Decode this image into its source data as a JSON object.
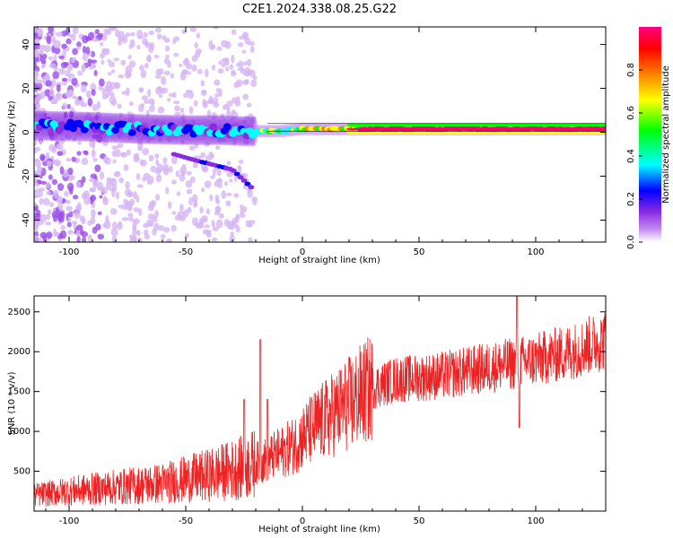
{
  "title": "C2E1.2024.338.08.25.G22",
  "chart_data": [
    {
      "type": "heatmap",
      "xlabel": "Height of straight line (km)",
      "ylabel": "Frequency (Hz)",
      "xlim": [
        -115,
        130
      ],
      "ylim": [
        -50,
        48
      ],
      "xticks": [
        "-100",
        "-50",
        "0",
        "50",
        "100"
      ],
      "xtick_values": [
        -100,
        -50,
        0,
        50,
        100
      ],
      "yticks": [
        "-40",
        "-20",
        "0",
        "20",
        "40"
      ],
      "ytick_values": [
        -40,
        -20,
        0,
        20,
        40
      ],
      "grid": false,
      "colorbar": {
        "label": "Normalized spectral amplitude",
        "range": [
          0,
          1
        ],
        "ticks": [
          "0.0",
          "0.2",
          "0.4",
          "0.6",
          "0.8"
        ],
        "tick_values": [
          0.0,
          0.2,
          0.4,
          0.6,
          0.8
        ],
        "colormap": [
          "#ffffff",
          "#c48cf0",
          "#8a2be2",
          "#0000ff",
          "#00ffff",
          "#00ff00",
          "#ffff00",
          "#ff8000",
          "#ff0000",
          "#ff0080"
        ]
      },
      "ridge": {
        "description_free_values": true,
        "points": [
          [
            -110,
            3
          ],
          [
            -90,
            2.5
          ],
          [
            -70,
            1.5
          ],
          [
            -50,
            1
          ],
          [
            -35,
            1
          ],
          [
            -25,
            0.5
          ],
          [
            -10,
            0.5
          ],
          [
            0,
            1.5
          ],
          [
            20,
            1.5
          ],
          [
            50,
            1.5
          ],
          [
            90,
            1.5
          ],
          [
            130,
            1.5
          ]
        ]
      },
      "secondary_track": {
        "points": [
          [
            -55,
            -10
          ],
          [
            -45,
            -13
          ],
          [
            -30,
            -17
          ],
          [
            -22,
            -25
          ]
        ]
      }
    },
    {
      "type": "line",
      "xlabel": "Height of straight line (km)",
      "ylabel": "SNR (10 * v/v)",
      "xlim": [
        -115,
        130
      ],
      "ylim": [
        0,
        2700
      ],
      "xticks": [
        "-100",
        "-50",
        "0",
        "50",
        "100"
      ],
      "xtick_values": [
        -100,
        -50,
        0,
        50,
        100
      ],
      "yticks": [
        "500",
        "1000",
        "1500",
        "2000",
        "2500"
      ],
      "ytick_values": [
        500,
        1000,
        1500,
        2000,
        2500
      ],
      "grid": false,
      "series_color": "#ee2222",
      "trend": [
        [
          -115,
          200
        ],
        [
          -100,
          250
        ],
        [
          -80,
          300
        ],
        [
          -60,
          350
        ],
        [
          -40,
          450
        ],
        [
          -25,
          550
        ],
        [
          -15,
          650
        ],
        [
          -5,
          800
        ],
        [
          5,
          1050
        ],
        [
          15,
          1250
        ],
        [
          25,
          1450
        ],
        [
          30,
          1550
        ],
        [
          40,
          1650
        ],
        [
          60,
          1700
        ],
        [
          80,
          1800
        ],
        [
          90,
          1850
        ],
        [
          100,
          1900
        ],
        [
          115,
          2000
        ],
        [
          130,
          2150
        ]
      ],
      "spikes": [
        [
          -25,
          1400
        ],
        [
          -18,
          2150
        ],
        [
          -15,
          1400
        ],
        [
          92,
          2700
        ],
        [
          93,
          1050
        ]
      ]
    }
  ]
}
